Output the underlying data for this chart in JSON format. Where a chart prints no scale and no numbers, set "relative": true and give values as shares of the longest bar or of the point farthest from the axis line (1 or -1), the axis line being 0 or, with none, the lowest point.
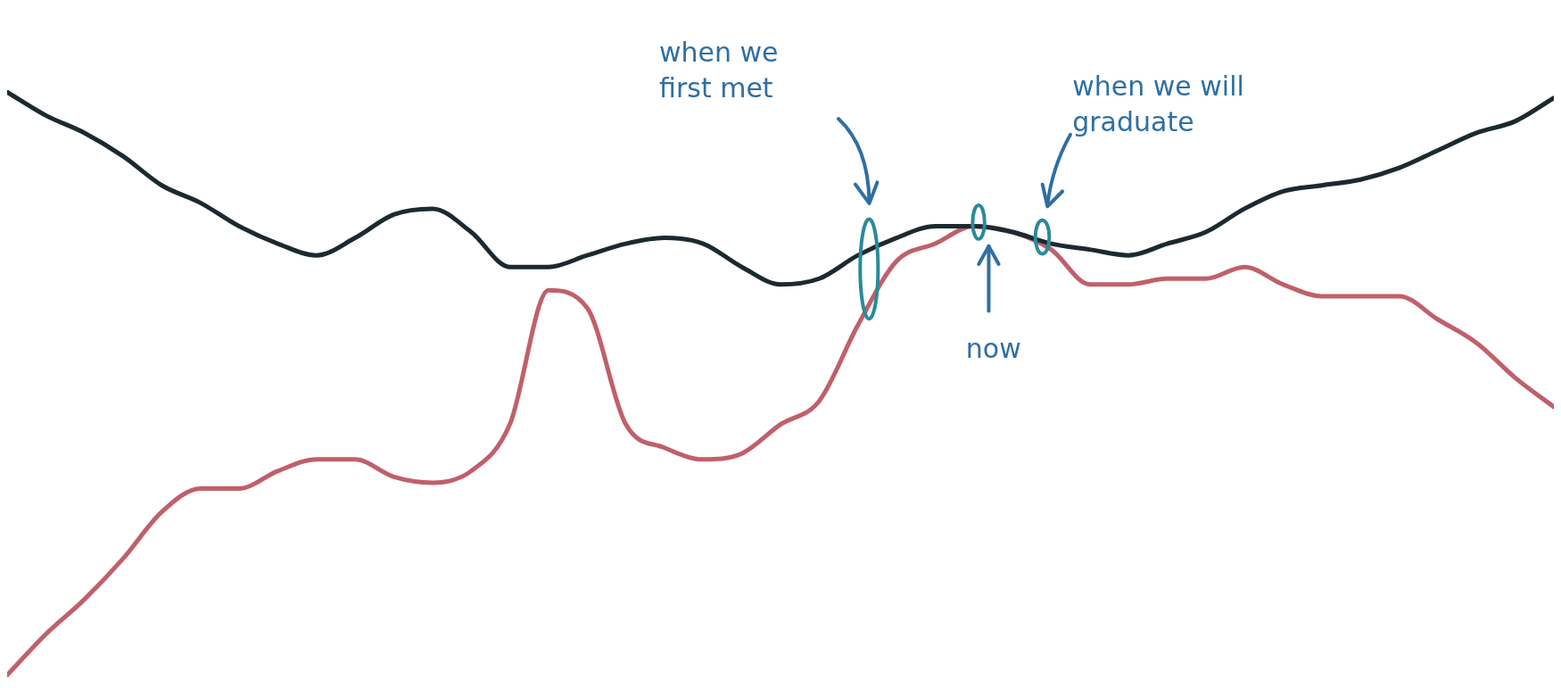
{
  "chart_data": {
    "type": "line",
    "relative": true,
    "marker": "none",
    "categories": [
      null,
      null,
      null,
      null,
      null,
      null,
      null,
      null,
      null,
      null,
      null,
      null,
      null,
      null,
      null,
      null,
      null,
      null,
      null,
      null,
      null,
      null,
      null,
      null,
      null,
      null,
      null,
      null,
      null,
      null,
      null,
      null,
      null,
      null,
      null,
      null,
      null,
      null,
      null,
      null,
      null
    ],
    "series": [
      {
        "color": "#1b2a30",
        "values": [
          1.0,
          0.96,
          0.93,
          0.89,
          0.84,
          0.81,
          0.77,
          0.74,
          0.72,
          0.75,
          0.79,
          0.8,
          0.76,
          0.7,
          0.7,
          0.72,
          0.74,
          0.75,
          0.74,
          0.7,
          0.67,
          0.68,
          0.72,
          0.75,
          0.77,
          0.77,
          0.76,
          0.74,
          0.73,
          0.72,
          0.74,
          0.76,
          0.8,
          0.83,
          0.84,
          0.85,
          0.87,
          0.9,
          0.93,
          0.95,
          0.99
        ]
      },
      {
        "color": "#c0606a",
        "values": [
          0.0,
          0.07,
          0.13,
          0.2,
          0.28,
          0.32,
          0.32,
          0.35,
          0.37,
          0.37,
          0.34,
          0.33,
          0.35,
          0.43,
          0.66,
          0.63,
          0.43,
          0.39,
          0.37,
          0.38,
          0.43,
          0.47,
          0.6,
          0.71,
          0.74,
          0.77,
          0.76,
          0.73,
          0.67,
          0.67,
          0.68,
          0.68,
          0.7,
          0.67,
          0.65,
          0.65,
          0.65,
          0.61,
          0.57,
          0.51,
          0.46
        ]
      }
    ],
    "annotations": [
      "when we first met",
      "now",
      "when we will graduate"
    ]
  }
}
